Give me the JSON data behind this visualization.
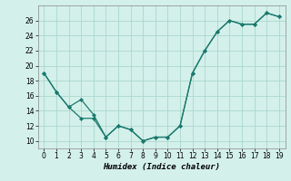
{
  "line1_x": [
    0,
    1,
    2,
    3,
    4,
    5,
    6,
    7,
    8,
    9,
    10,
    11,
    12,
    13,
    14,
    15,
    16,
    17,
    18,
    19
  ],
  "line1_y": [
    19.0,
    16.5,
    14.5,
    13.0,
    13.0,
    10.5,
    12.0,
    11.5,
    10.0,
    10.5,
    10.5,
    12.0,
    19.0,
    22.0,
    24.5,
    26.0,
    25.5,
    25.5,
    27.0,
    26.5
  ],
  "line2_x": [
    0,
    1,
    2,
    3,
    4,
    5,
    6,
    7,
    8,
    9,
    10,
    11,
    12,
    13,
    14,
    15,
    16,
    17,
    18,
    19
  ],
  "line2_y": [
    19.0,
    16.5,
    14.5,
    15.5,
    13.5,
    10.5,
    12.0,
    11.5,
    10.0,
    10.5,
    10.5,
    12.0,
    19.0,
    22.0,
    24.5,
    26.0,
    25.5,
    25.5,
    27.0,
    26.5
  ],
  "line_color": "#1a7a6e",
  "bg_color": "#d4f0eb",
  "grid_color": "#aad8cc",
  "xlabel": "Humidex (Indice chaleur)",
  "ylim": [
    9,
    28
  ],
  "xlim": [
    -0.5,
    19.5
  ],
  "yticks": [
    10,
    12,
    14,
    16,
    18,
    20,
    22,
    24,
    26
  ],
  "xticks": [
    0,
    1,
    2,
    3,
    4,
    5,
    6,
    7,
    8,
    9,
    10,
    11,
    12,
    13,
    14,
    15,
    16,
    17,
    18,
    19
  ],
  "tick_fontsize": 5.5,
  "xlabel_fontsize": 6.5
}
